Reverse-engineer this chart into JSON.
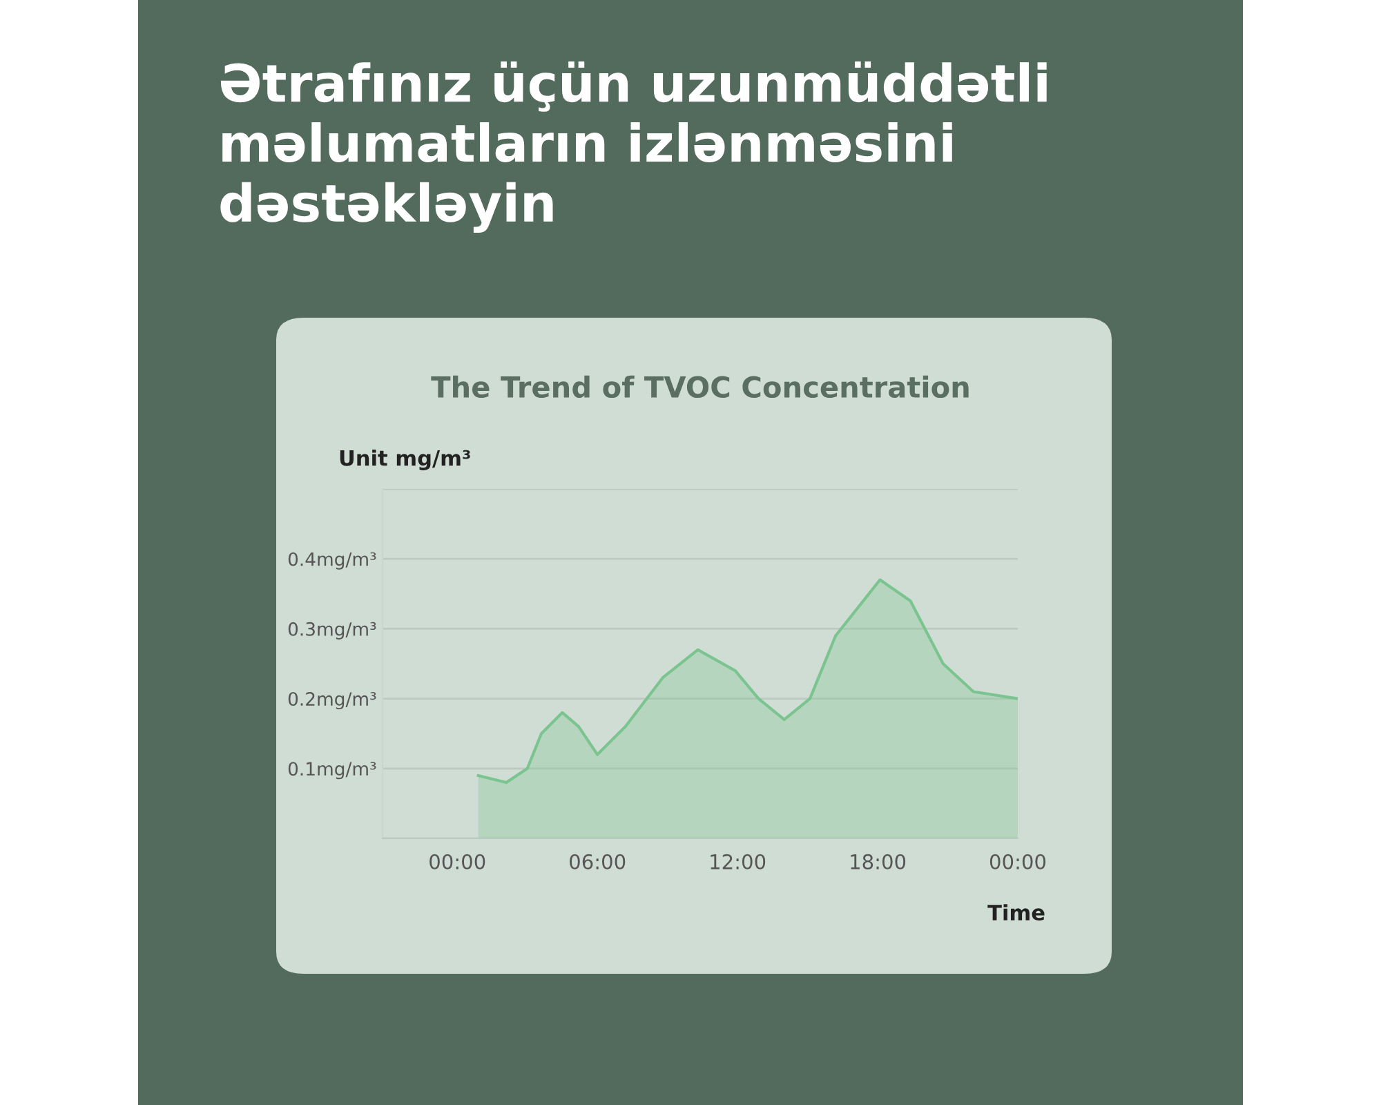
{
  "chart_data": {
    "type": "area",
    "title": "Ətrafınız üçün uzunmüddətli\nməlumatların izlənməsini\ndəstəkləyin",
    "subtitle": "The Trend of TVOC Concentration",
    "xlabel": "Time",
    "ylabel": "Unit mg/m³",
    "x": [
      0.9,
      2.1,
      3.0,
      3.6,
      4.5,
      5.2,
      6.0,
      7.2,
      8.8,
      10.3,
      11.9,
      12.9,
      14.0,
      15.1,
      16.2,
      18.1,
      19.4,
      20.8,
      22.1,
      24.0
    ],
    "series": [
      {
        "color": "#7cc48f",
        "values": [
          0.09,
          0.08,
          0.1,
          0.15,
          0.18,
          0.16,
          0.12,
          0.16,
          0.23,
          0.27,
          0.24,
          0.2,
          0.17,
          0.2,
          0.29,
          0.37,
          0.34,
          0.25,
          0.21,
          0.2
        ]
      }
    ],
    "xlim": [
      -3.2,
      24
    ],
    "xticks": [
      {
        "value": 0,
        "label": "00:00"
      },
      {
        "value": 6,
        "label": "06:00"
      },
      {
        "value": 12,
        "label": "12:00"
      },
      {
        "value": 18,
        "label": "18:00"
      },
      {
        "value": 24,
        "label": "00:00"
      }
    ],
    "ylim": [
      0,
      0.5
    ],
    "yticks": [
      {
        "value": 0,
        "label": null
      },
      {
        "value": 0.1,
        "label": "0.1mg/m³"
      },
      {
        "value": 0.2,
        "label": "0.2mg/m³"
      },
      {
        "value": 0.3,
        "label": "0.3mg/m³"
      },
      {
        "value": 0.4,
        "label": "0.4mg/m³"
      },
      {
        "value": 0.5,
        "label": null
      }
    ],
    "grid": "y"
  }
}
